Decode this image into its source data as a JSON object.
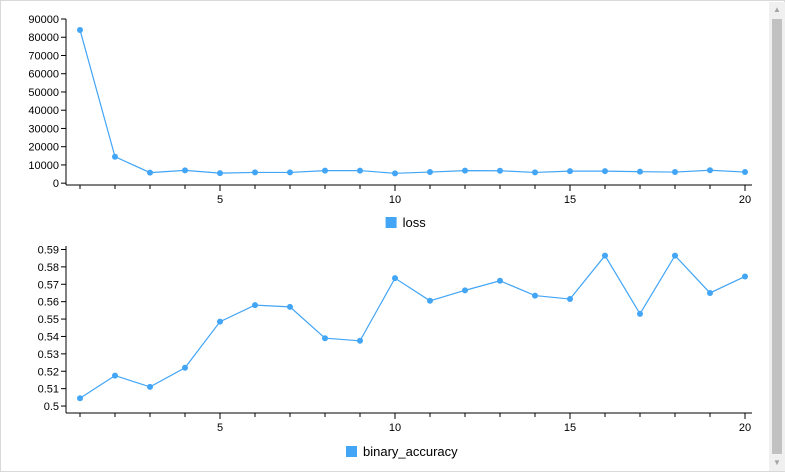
{
  "colors": {
    "series": "#42a5f5",
    "axis": "#000000"
  },
  "chart_data": [
    {
      "type": "line",
      "x": [
        1,
        2,
        3,
        4,
        5,
        6,
        7,
        8,
        9,
        10,
        11,
        12,
        13,
        14,
        15,
        16,
        17,
        18,
        19,
        20
      ],
      "series": [
        {
          "name": "loss",
          "values": [
            84000,
            14500,
            5800,
            7000,
            5500,
            5900,
            5900,
            6900,
            6900,
            5400,
            6100,
            6900,
            6800,
            5900,
            6600,
            6600,
            6300,
            6100,
            7100,
            6100
          ]
        }
      ],
      "xlim": [
        0.6,
        20.2
      ],
      "ylim": [
        -1000,
        90000
      ],
      "xticks": [
        5,
        10,
        15,
        20
      ],
      "yticks": [
        0,
        10000,
        20000,
        30000,
        40000,
        50000,
        60000,
        70000,
        80000,
        90000
      ],
      "legend_position": "bottom"
    },
    {
      "type": "line",
      "x": [
        1,
        2,
        3,
        4,
        5,
        6,
        7,
        8,
        9,
        10,
        11,
        12,
        13,
        14,
        15,
        16,
        17,
        18,
        19,
        20
      ],
      "series": [
        {
          "name": "binary_accuracy",
          "values": [
            0.5045,
            0.5175,
            0.511,
            0.522,
            0.5485,
            0.558,
            0.557,
            0.539,
            0.5375,
            0.5735,
            0.5605,
            0.5665,
            0.572,
            0.5635,
            0.5615,
            0.5865,
            0.553,
            0.5865,
            0.565,
            0.5745
          ]
        }
      ],
      "xlim": [
        0.6,
        20.2
      ],
      "ylim": [
        0.496,
        0.592
      ],
      "xticks": [
        5,
        10,
        15,
        20
      ],
      "yticks": [
        0.5,
        0.51,
        0.52,
        0.53,
        0.54,
        0.55,
        0.56,
        0.57,
        0.58,
        0.59
      ],
      "legend_position": "bottom"
    }
  ]
}
